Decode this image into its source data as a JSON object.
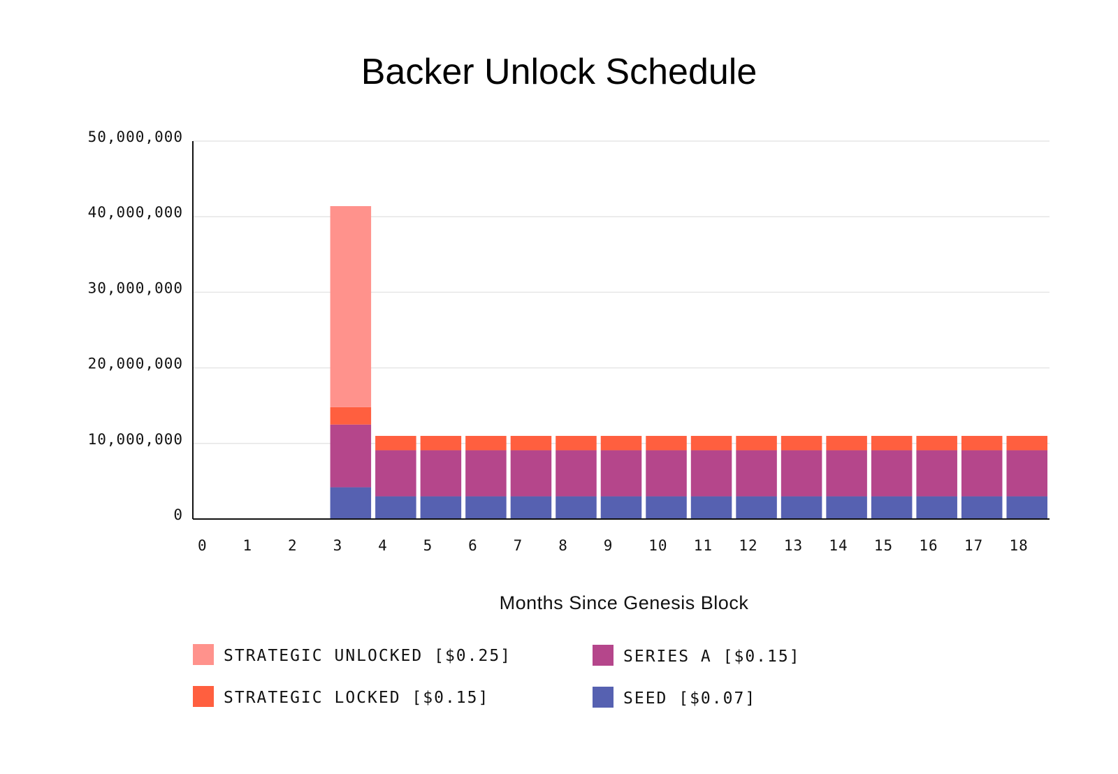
{
  "chart_data": {
    "type": "bar",
    "stacked": true,
    "title": "Backer Unlock Schedule",
    "xlabel": "Months Since Genesis Block",
    "ylabel": "",
    "ylim": [
      0,
      50000000
    ],
    "yticks": [
      0,
      10000000,
      20000000,
      30000000,
      40000000,
      50000000
    ],
    "ytick_labels": [
      "0",
      "10,000,000",
      "20,000,000",
      "30,000,000",
      "40,000,000",
      "50,000,000"
    ],
    "grid": true,
    "legend_position": "bottom",
    "categories": [
      "0",
      "1",
      "2",
      "3",
      "4",
      "5",
      "6",
      "7",
      "8",
      "9",
      "10",
      "11",
      "12",
      "13",
      "14",
      "15",
      "16",
      "17",
      "18"
    ],
    "series": [
      {
        "name": "SEED [$0.07]",
        "color": "#5661b1",
        "values": [
          0,
          0,
          0,
          4200000,
          3000000,
          3000000,
          3000000,
          3000000,
          3000000,
          3000000,
          3000000,
          3000000,
          3000000,
          3000000,
          3000000,
          3000000,
          3000000,
          3000000,
          3000000
        ]
      },
      {
        "name": "SERIES A [$0.15]",
        "color": "#b5468b",
        "values": [
          0,
          0,
          0,
          8300000,
          6100000,
          6100000,
          6100000,
          6100000,
          6100000,
          6100000,
          6100000,
          6100000,
          6100000,
          6100000,
          6100000,
          6100000,
          6100000,
          6100000,
          6100000
        ]
      },
      {
        "name": "STRATEGIC LOCKED [$0.15]",
        "color": "#ff5f3f",
        "values": [
          0,
          0,
          0,
          2300000,
          1900000,
          1900000,
          1900000,
          1900000,
          1900000,
          1900000,
          1900000,
          1900000,
          1900000,
          1900000,
          1900000,
          1900000,
          1900000,
          1900000,
          1900000
        ]
      },
      {
        "name": "STRATEGIC UNLOCKED [$0.25]",
        "color": "#ff928c",
        "values": [
          0,
          0,
          0,
          26600000,
          0,
          0,
          0,
          0,
          0,
          0,
          0,
          0,
          0,
          0,
          0,
          0,
          0,
          0,
          0
        ]
      }
    ],
    "legend_order": [
      "STRATEGIC UNLOCKED [$0.25]",
      "SERIES A [$0.15]",
      "STRATEGIC LOCKED [$0.15]",
      "SEED [$0.07]"
    ]
  }
}
